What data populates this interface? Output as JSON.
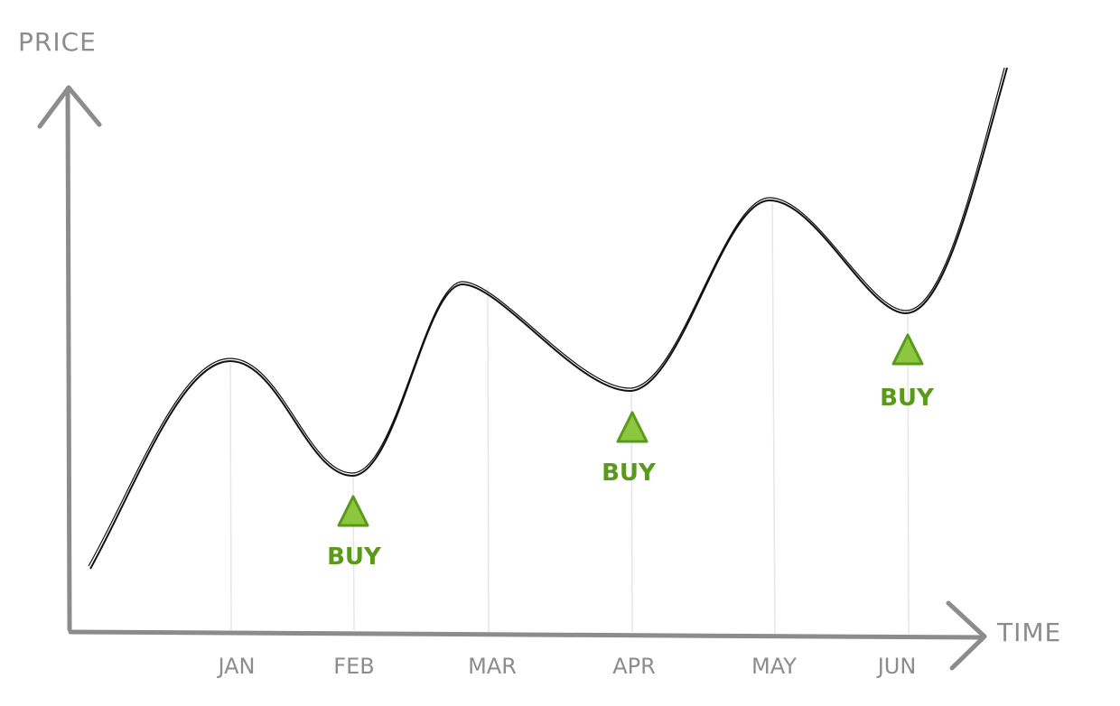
{
  "axes": {
    "y_label": "PRICE",
    "x_label": "TIME"
  },
  "months": [
    "JAN",
    "FEB",
    "MAR",
    "APR",
    "MAY",
    "JUN"
  ],
  "annotations": [
    {
      "label": "BUY"
    },
    {
      "label": "BUY"
    },
    {
      "label": "BUY"
    }
  ]
}
